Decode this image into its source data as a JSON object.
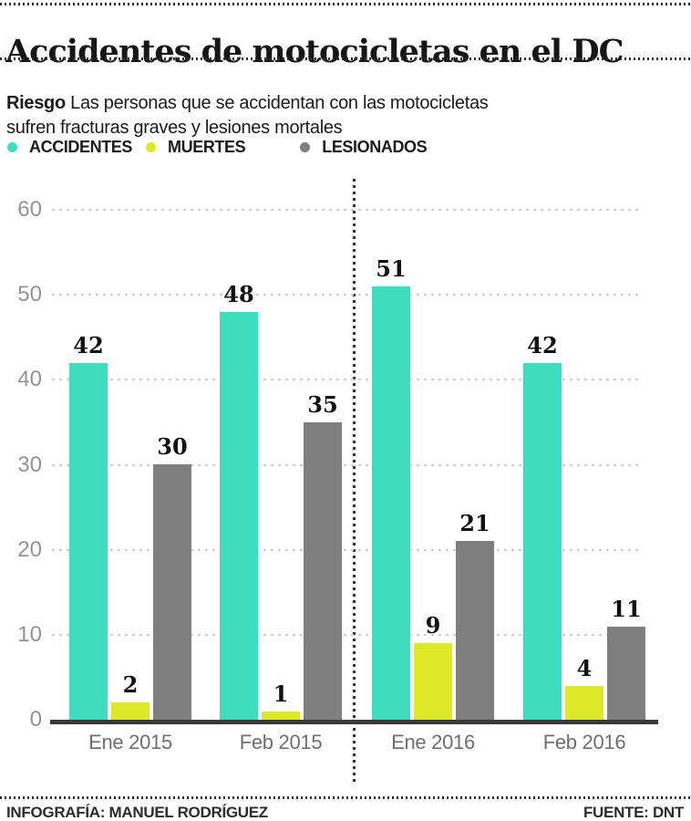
{
  "header": {
    "title": "Accidentes de motocicletas en el DC",
    "kicker": "Riesgo",
    "subtitle": "Las personas que se accidentan con las motocicletas sufren fracturas graves y lesiones mortales"
  },
  "legend": [
    {
      "label": "ACCIDENTES",
      "color": "#3eddbe"
    },
    {
      "label": "MUERTES",
      "color": "#dde826"
    },
    {
      "label": "LESIONADOS",
      "color": "#7f7f7f"
    }
  ],
  "chart_data": {
    "type": "bar",
    "title": "Accidentes de motocicletas en el DC",
    "categories": [
      "Ene 2015",
      "Feb 2015",
      "Ene 2016",
      "Feb 2016"
    ],
    "series": [
      {
        "name": "ACCIDENTES",
        "color": "#3eddbe",
        "values": [
          42,
          48,
          51,
          42
        ]
      },
      {
        "name": "MUERTES",
        "color": "#dde826",
        "values": [
          2,
          1,
          9,
          4
        ]
      },
      {
        "name": "LESIONADOS",
        "color": "#7f7f7f",
        "values": [
          30,
          35,
          21,
          11
        ]
      }
    ],
    "xlabel": "",
    "ylabel": "",
    "ylim": [
      0,
      60
    ],
    "yticks": [
      0,
      10,
      20,
      30,
      40,
      50,
      60
    ],
    "grid": true,
    "gridstyle": "dashed",
    "legend_position": "top",
    "divider_between": [
      "Feb 2015",
      "Ene 2016"
    ],
    "bar_value_labels": true
  },
  "footer": {
    "credit": "INFOGRAFÍA: MANUEL RODRÍGUEZ",
    "source": "FUENTE: DNT"
  }
}
